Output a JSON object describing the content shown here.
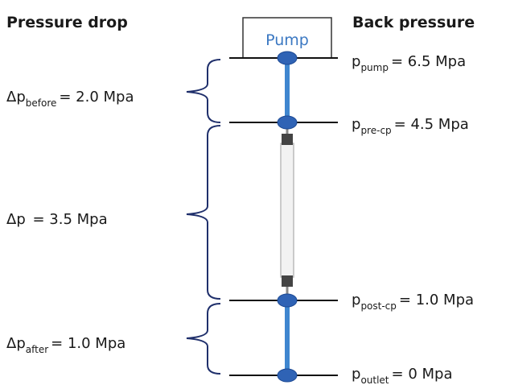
{
  "headers": {
    "left": "Pressure drop",
    "right": "Back pressure"
  },
  "pump": "Pump",
  "pressure_drops": [
    {
      "symbol": "Δp",
      "subscript": "before",
      "value": "= 2.0 Mpa"
    },
    {
      "symbol": "Δp",
      "value": " = 3.5 Mpa"
    },
    {
      "symbol": "Δp",
      "subscript": "after",
      "value": "= 1.0 Mpa"
    }
  ],
  "back_pressures": [
    {
      "symbol": "p",
      "subscript": "pump",
      "value": "= 6.5 Mpa"
    },
    {
      "symbol": "p",
      "subscript": "pre-cp",
      "value": "= 4.5 Mpa"
    },
    {
      "symbol": "p",
      "subscript": "post-cp",
      "value": "= 1.0 Mpa"
    },
    {
      "symbol": "p",
      "subscript": "outlet",
      "value": "= 0 Mpa"
    }
  ]
}
